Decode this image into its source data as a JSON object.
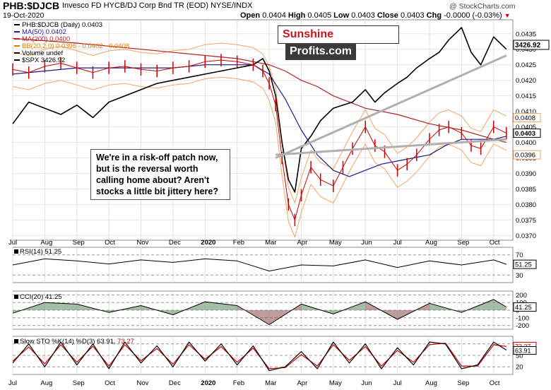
{
  "header": {
    "symbol": "PHB:$DJCB",
    "description": "Invesco FD HYCB/DJ Corp Bnd TR (EOD) NYSE/INDX",
    "watermark": "@ StockCharts.com",
    "date": "19-Oct-2020",
    "open_label": "Open",
    "open": "0.0404",
    "high_label": "High",
    "high": "0.0405",
    "low_label": "Low",
    "low": "0.0403",
    "close_label": "Close",
    "close": "0.0403",
    "chg_label": "Chg",
    "chg": "-0.0000 (-0.03%)",
    "chg_arrow": "▼"
  },
  "logo": {
    "part1": "Sunshine",
    "part2": "Profits.com"
  },
  "annotation": {
    "lines": [
      "We're in a risk-off patch now,",
      "but is the reversal worth",
      "calling home about? Aren't",
      "stocks a little bit jittery here?"
    ]
  },
  "colors": {
    "price": "#cc0000",
    "spx": "#000000",
    "ma50": "#1a1a8c",
    "ma200": "#b22222",
    "bb": "#f4a460",
    "stoch_k": "#000000",
    "stoch_d": "#cc0000",
    "cci_fill_pos": "#5a8a5a",
    "cci_fill_neg": "#8a4a4a",
    "trendline": "#b0b0b0"
  },
  "chart_data": [
    {
      "type": "line",
      "panel": "price",
      "legend": [
        {
          "text": "PHB:$DJCB (Daily) 0.0403",
          "color": "#000000"
        },
        {
          "text": "MA(50) 0.0402",
          "color": "#1a1a8c"
        },
        {
          "text": "MA(200) 0.0400",
          "color": "#b22222"
        },
        {
          "text": "BB(20,2.0) 0.0396 - 0.0402 - 0.0408",
          "color": "#e07b00"
        },
        {
          "text": "Volume undef",
          "color": "#000000"
        },
        {
          "text": "$SPX 3426.92",
          "color": "#000000"
        }
      ],
      "x_ticks": [
        "Jul",
        "Aug",
        "Sep",
        "Oct",
        "Nov",
        "Dec",
        "2020",
        "Feb",
        "Mar",
        "Apr",
        "May",
        "Jun",
        "Jul",
        "Aug",
        "Sep",
        "Oct"
      ],
      "y_ticks": [
        "0.0435",
        "0.0430",
        "0.0425",
        "0.0420",
        "0.0415",
        "0.0410",
        "0.0405",
        "0.0400",
        "0.0395",
        "0.0390",
        "0.0385",
        "0.0380",
        "0.0375",
        "0.0370"
      ],
      "ylim": [
        0.03685,
        0.04395
      ],
      "last_labels": {
        "bb_upper": "0.0408",
        "price": "0.0403",
        "bb_lower": "0.0396",
        "spx": "3426.92"
      },
      "dates": [
        "2019-07",
        "2019-08",
        "2019-09",
        "2019-10",
        "2019-11",
        "2019-12",
        "2020-01",
        "2020-02",
        "2020-03",
        "2020-04",
        "2020-05",
        "2020-06",
        "2020-07",
        "2020-08",
        "2020-09",
        "2020-10"
      ],
      "series": [
        {
          "name": "PHB:$DJCB",
          "x": [
            0,
            0.5,
            1,
            1.5,
            2,
            2.5,
            3,
            3.5,
            4,
            4.5,
            5,
            5.5,
            6,
            6.5,
            7,
            7.5,
            7.8,
            8,
            8.2,
            8.4,
            8.6,
            8.8,
            9,
            9.3,
            9.6,
            10,
            10.3,
            10.6,
            11,
            11.3,
            11.6,
            12,
            12.3,
            12.6,
            13,
            13.3,
            13.6,
            14,
            14.3,
            14.6,
            15,
            15.4
          ],
          "y": [
            0.04235,
            0.04225,
            0.04245,
            0.04255,
            0.0424,
            0.04225,
            0.0424,
            0.04245,
            0.04235,
            0.0423,
            0.0424,
            0.04245,
            0.0426,
            0.04265,
            0.0426,
            0.0425,
            0.0423,
            0.0419,
            0.0412,
            0.0395,
            0.038,
            0.0375,
            0.0383,
            0.0392,
            0.0388,
            0.0386,
            0.0392,
            0.0398,
            0.0405,
            0.0399,
            0.0397,
            0.0391,
            0.0393,
            0.0396,
            0.0401,
            0.0404,
            0.0405,
            0.0403,
            0.0399,
            0.0398,
            0.0405,
            0.0403
          ]
        },
        {
          "name": "$SPX",
          "x": [
            0,
            0.5,
            1,
            1.5,
            2,
            2.5,
            3,
            3.5,
            4,
            4.5,
            5,
            5.5,
            6,
            6.5,
            7,
            7.5,
            7.8,
            8,
            8.2,
            8.4,
            8.6,
            8.8,
            9,
            9.3,
            9.6,
            10,
            10.3,
            10.6,
            11,
            11.3,
            11.6,
            12,
            12.3,
            12.6,
            13,
            13.3,
            13.6,
            14,
            14.3,
            14.6,
            15,
            15.4
          ],
          "y": [
            0.0406,
            0.0413,
            0.0411,
            0.0409,
            0.0412,
            0.0408,
            0.0413,
            0.0415,
            0.0417,
            0.0419,
            0.042,
            0.0421,
            0.0422,
            0.0423,
            0.0424,
            0.0425,
            0.0427,
            0.0423,
            0.0415,
            0.04,
            0.0388,
            0.0384,
            0.0398,
            0.0402,
            0.0407,
            0.0411,
            0.0412,
            0.0413,
            0.0417,
            0.0413,
            0.0416,
            0.0419,
            0.0421,
            0.0424,
            0.0427,
            0.0429,
            0.0433,
            0.0437,
            0.0429,
            0.0425,
            0.0434,
            0.043
          ]
        },
        {
          "name": "MA(50)",
          "x": [
            0,
            1,
            2,
            3,
            4,
            5,
            6,
            7,
            7.5,
            8,
            8.5,
            9,
            9.5,
            10,
            10.5,
            11,
            11.5,
            12,
            12.5,
            13,
            13.5,
            14,
            14.5,
            15,
            15.4
          ],
          "y": [
            0.0422,
            0.0423,
            0.0424,
            0.0424,
            0.0424,
            0.0424,
            0.0425,
            0.0425,
            0.0425,
            0.0422,
            0.0414,
            0.0404,
            0.0396,
            0.0391,
            0.0389,
            0.0391,
            0.0393,
            0.0394,
            0.0395,
            0.0396,
            0.0399,
            0.0401,
            0.0401,
            0.0401,
            0.0402
          ]
        },
        {
          "name": "MA(200)",
          "x": [
            0,
            2,
            4,
            6,
            7,
            8,
            8.5,
            9,
            9.5,
            10,
            11,
            12,
            13,
            14,
            15,
            15.4
          ],
          "y": [
            0.04335,
            0.0432,
            0.043,
            0.0428,
            0.0427,
            0.0425,
            0.0423,
            0.042,
            0.0418,
            0.0415,
            0.0411,
            0.0409,
            0.0406,
            0.0404,
            0.0401,
            0.04
          ]
        }
      ],
      "trendlines": [
        {
          "x": [
            8.2,
            15.4
          ],
          "y": [
            0.0395,
            0.0428
          ]
        },
        {
          "x": [
            8.2,
            15.4
          ],
          "y": [
            0.0396,
            0.0401
          ]
        }
      ]
    },
    {
      "type": "line",
      "panel": "rsi",
      "legend_text": "RSI(14) 51.25",
      "y_ticks": [
        "70",
        "30"
      ],
      "last_label": "51.25",
      "ylim": [
        15,
        85
      ],
      "series": [
        {
          "name": "RSI(14)",
          "x": [
            0,
            1,
            2,
            3,
            4,
            5,
            6,
            7,
            8,
            9,
            10,
            11,
            12,
            13,
            14,
            15,
            15.4
          ],
          "y": [
            50,
            62,
            58,
            52,
            60,
            55,
            62,
            58,
            38,
            50,
            48,
            60,
            45,
            58,
            50,
            60,
            51.25
          ]
        }
      ]
    },
    {
      "type": "line",
      "panel": "cci",
      "legend_text": "CCI(20) 41.25",
      "y_ticks": [
        "200",
        "100",
        "0",
        "-100",
        "-200"
      ],
      "last_label": "41.25",
      "ylim": [
        -250,
        250
      ],
      "series": [
        {
          "name": "CCI(20)",
          "x": [
            0,
            1,
            2,
            3,
            4,
            5,
            6,
            7,
            8,
            9,
            10,
            11,
            12,
            13,
            14,
            15,
            15.4
          ],
          "y": [
            -40,
            100,
            80,
            -30,
            60,
            -60,
            110,
            60,
            -190,
            80,
            -50,
            110,
            -120,
            90,
            -30,
            140,
            41.25
          ]
        }
      ]
    },
    {
      "type": "line",
      "panel": "stoch",
      "legend_text_k": "Slow STO %K(14) %D(3) 63.91,",
      "legend_text_d": "73.27",
      "y_ticks": [
        "80",
        "50",
        "20"
      ],
      "last_labels": [
        "73.27",
        "63.91"
      ],
      "ylim": [
        0,
        100
      ],
      "series": [
        {
          "name": "%K",
          "x": [
            0,
            0.5,
            1,
            1.5,
            2,
            2.5,
            3,
            3.5,
            4,
            4.5,
            5,
            5.5,
            6,
            6.5,
            7,
            7.5,
            8,
            8.5,
            9,
            9.5,
            10,
            10.5,
            11,
            11.5,
            12,
            12.5,
            13,
            13.5,
            14,
            14.5,
            15,
            15.4
          ],
          "y": [
            30,
            80,
            20,
            85,
            25,
            80,
            15,
            85,
            30,
            75,
            20,
            85,
            35,
            80,
            25,
            75,
            10,
            20,
            60,
            15,
            85,
            30,
            80,
            15,
            70,
            25,
            85,
            80,
            15,
            25,
            85,
            63.91
          ]
        },
        {
          "name": "%D",
          "x": [
            0,
            0.5,
            1,
            1.5,
            2,
            2.5,
            3,
            3.5,
            4,
            4.5,
            5,
            5.5,
            6,
            6.5,
            7,
            7.5,
            8,
            8.5,
            9,
            9.5,
            10,
            10.5,
            11,
            11.5,
            12,
            12.5,
            13,
            13.5,
            14,
            14.5,
            15,
            15.4
          ],
          "y": [
            35,
            72,
            28,
            78,
            32,
            74,
            22,
            78,
            36,
            68,
            27,
            78,
            40,
            73,
            32,
            69,
            15,
            18,
            52,
            22,
            78,
            37,
            73,
            22,
            63,
            32,
            78,
            82,
            22,
            22,
            78,
            73.27
          ]
        }
      ]
    }
  ]
}
